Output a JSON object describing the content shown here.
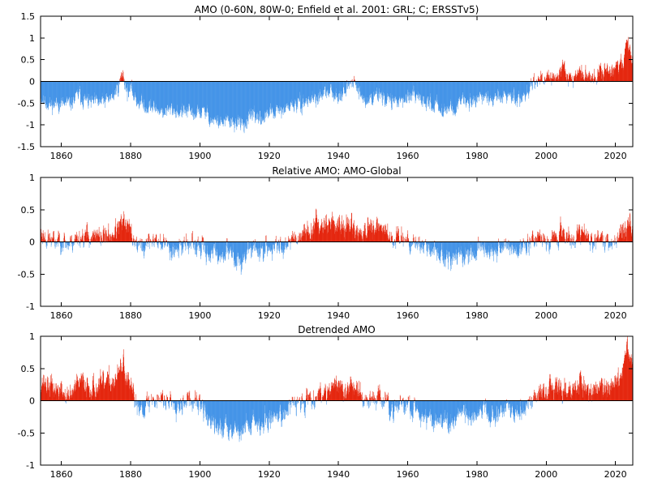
{
  "chart_data": [
    {
      "type": "bar",
      "title": "AMO (0-60N, 80W-0;  Enfield et al. 2001: GRL; C; ERSSTv5)",
      "xlabel": "",
      "ylabel": "",
      "xlim": [
        1854,
        2025
      ],
      "ylim": [
        -1.5,
        1.5
      ],
      "yticks": [
        "-1.5",
        "-1",
        "-0.5",
        "0",
        "0.5",
        "1",
        "1.5"
      ],
      "ytick_values": [
        -1.5,
        -1,
        -0.5,
        0,
        0.5,
        1,
        1.5
      ],
      "xticks": [
        "1860",
        "1880",
        "1900",
        "1920",
        "1940",
        "1960",
        "1980",
        "2000",
        "2020"
      ],
      "xtick_values": [
        1860,
        1880,
        1900,
        1920,
        1940,
        1960,
        1980,
        2000,
        2020
      ],
      "positive_color": "#e31a00",
      "negative_color": "#3a8ee6",
      "grid": false,
      "anchors": [
        [
          1854.0,
          -0.35
        ],
        [
          1855.0,
          -0.45
        ],
        [
          1857.0,
          -0.55
        ],
        [
          1859.0,
          -0.5
        ],
        [
          1861.0,
          -0.55
        ],
        [
          1863.0,
          -0.5
        ],
        [
          1865.0,
          -0.3
        ],
        [
          1867.0,
          -0.45
        ],
        [
          1869.0,
          -0.5
        ],
        [
          1871.0,
          -0.5
        ],
        [
          1873.0,
          -0.45
        ],
        [
          1875.0,
          -0.35
        ],
        [
          1876.5,
          -0.1
        ],
        [
          1877.8,
          0.2
        ],
        [
          1879.0,
          -0.25
        ],
        [
          1880.0,
          -0.2
        ],
        [
          1882.0,
          -0.45
        ],
        [
          1884.0,
          -0.55
        ],
        [
          1886.0,
          -0.6
        ],
        [
          1888.0,
          -0.65
        ],
        [
          1890.0,
          -0.7
        ],
        [
          1892.0,
          -0.65
        ],
        [
          1894.0,
          -0.7
        ],
        [
          1896.0,
          -0.7
        ],
        [
          1898.0,
          -0.75
        ],
        [
          1900.0,
          -0.7
        ],
        [
          1902.0,
          -0.75
        ],
        [
          1904.0,
          -0.9
        ],
        [
          1906.0,
          -0.95
        ],
        [
          1908.0,
          -0.95
        ],
        [
          1910.0,
          -0.95
        ],
        [
          1912.0,
          -1.0
        ],
        [
          1914.0,
          -0.9
        ],
        [
          1916.0,
          -0.8
        ],
        [
          1918.0,
          -0.85
        ],
        [
          1920.0,
          -0.75
        ],
        [
          1922.0,
          -0.7
        ],
        [
          1924.0,
          -0.7
        ],
        [
          1926.0,
          -0.55
        ],
        [
          1928.0,
          -0.55
        ],
        [
          1930.0,
          -0.5
        ],
        [
          1932.0,
          -0.4
        ],
        [
          1934.0,
          -0.4
        ],
        [
          1936.0,
          -0.3
        ],
        [
          1938.0,
          -0.25
        ],
        [
          1940.0,
          -0.3
        ],
        [
          1942.0,
          -0.2
        ],
        [
          1944.0,
          -0.05
        ],
        [
          1945.0,
          0.05
        ],
        [
          1946.0,
          -0.25
        ],
        [
          1948.0,
          -0.5
        ],
        [
          1950.0,
          -0.35
        ],
        [
          1952.0,
          -0.3
        ],
        [
          1954.0,
          -0.4
        ],
        [
          1956.0,
          -0.5
        ],
        [
          1958.0,
          -0.4
        ],
        [
          1960.0,
          -0.35
        ],
        [
          1962.0,
          -0.4
        ],
        [
          1964.0,
          -0.45
        ],
        [
          1966.0,
          -0.5
        ],
        [
          1968.0,
          -0.55
        ],
        [
          1970.0,
          -0.6
        ],
        [
          1972.0,
          -0.65
        ],
        [
          1974.0,
          -0.55
        ],
        [
          1976.0,
          -0.5
        ],
        [
          1978.0,
          -0.45
        ],
        [
          1980.0,
          -0.35
        ],
        [
          1982.0,
          -0.35
        ],
        [
          1984.0,
          -0.45
        ],
        [
          1986.0,
          -0.4
        ],
        [
          1988.0,
          -0.3
        ],
        [
          1990.0,
          -0.3
        ],
        [
          1992.0,
          -0.35
        ],
        [
          1994.0,
          -0.35
        ],
        [
          1995.5,
          -0.05
        ],
        [
          1997.0,
          0.0
        ],
        [
          1998.0,
          0.15
        ],
        [
          2000.0,
          -0.05
        ],
        [
          2002.0,
          0.1
        ],
        [
          2004.0,
          0.2
        ],
        [
          2006.0,
          0.15
        ],
        [
          2008.0,
          0.1
        ],
        [
          2010.0,
          0.2
        ],
        [
          2012.0,
          0.15
        ],
        [
          2014.0,
          0.1
        ],
        [
          2016.0,
          0.25
        ],
        [
          2018.0,
          0.2
        ],
        [
          2020.0,
          0.3
        ],
        [
          2022.0,
          0.4
        ],
        [
          2023.3,
          0.85
        ],
        [
          2024.0,
          0.8
        ],
        [
          2025.0,
          0.5
        ]
      ],
      "noise": 0.18,
      "seed": 11
    },
    {
      "type": "bar",
      "title": "Relative AMO: AMO-Global",
      "xlabel": "",
      "ylabel": "",
      "xlim": [
        1854,
        2025
      ],
      "ylim": [
        -1,
        1
      ],
      "yticks": [
        "-1",
        "-0.5",
        "0",
        "0.5",
        "1"
      ],
      "ytick_values": [
        -1,
        -0.5,
        0,
        0.5,
        1
      ],
      "xticks": [
        "1860",
        "1880",
        "1900",
        "1920",
        "1940",
        "1960",
        "1980",
        "2000",
        "2020"
      ],
      "xtick_values": [
        1860,
        1880,
        1900,
        1920,
        1940,
        1960,
        1980,
        2000,
        2020
      ],
      "positive_color": "#e31a00",
      "negative_color": "#3a8ee6",
      "grid": false,
      "anchors": [
        [
          1854.0,
          0.15
        ],
        [
          1856.0,
          0.05
        ],
        [
          1858.0,
          0.0
        ],
        [
          1860.0,
          0.05
        ],
        [
          1862.0,
          -0.05
        ],
        [
          1864.0,
          0.05
        ],
        [
          1866.0,
          0.1
        ],
        [
          1868.0,
          0.1
        ],
        [
          1870.0,
          0.05
        ],
        [
          1872.0,
          0.1
        ],
        [
          1874.0,
          0.1
        ],
        [
          1876.0,
          0.2
        ],
        [
          1878.0,
          0.3
        ],
        [
          1880.0,
          0.15
        ],
        [
          1882.0,
          -0.05
        ],
        [
          1884.0,
          -0.1
        ],
        [
          1886.0,
          0.05
        ],
        [
          1888.0,
          0.0
        ],
        [
          1890.0,
          -0.05
        ],
        [
          1892.0,
          -0.1
        ],
        [
          1894.0,
          -0.1
        ],
        [
          1896.0,
          0.0
        ],
        [
          1898.0,
          -0.1
        ],
        [
          1900.0,
          -0.1
        ],
        [
          1902.0,
          -0.15
        ],
        [
          1904.0,
          -0.2
        ],
        [
          1906.0,
          -0.2
        ],
        [
          1908.0,
          -0.15
        ],
        [
          1910.0,
          -0.25
        ],
        [
          1912.0,
          -0.3
        ],
        [
          1914.0,
          -0.15
        ],
        [
          1916.0,
          -0.1
        ],
        [
          1918.0,
          -0.15
        ],
        [
          1920.0,
          -0.1
        ],
        [
          1922.0,
          -0.1
        ],
        [
          1924.0,
          -0.05
        ],
        [
          1926.0,
          0.05
        ],
        [
          1928.0,
          0.1
        ],
        [
          1930.0,
          0.15
        ],
        [
          1932.0,
          0.2
        ],
        [
          1934.0,
          0.3
        ],
        [
          1936.0,
          0.3
        ],
        [
          1938.0,
          0.3
        ],
        [
          1940.0,
          0.25
        ],
        [
          1942.0,
          0.25
        ],
        [
          1944.0,
          0.25
        ],
        [
          1946.0,
          0.15
        ],
        [
          1948.0,
          0.15
        ],
        [
          1950.0,
          0.2
        ],
        [
          1952.0,
          0.2
        ],
        [
          1954.0,
          0.15
        ],
        [
          1956.0,
          0.05
        ],
        [
          1958.0,
          0.1
        ],
        [
          1960.0,
          0.05
        ],
        [
          1962.0,
          0.0
        ],
        [
          1964.0,
          -0.05
        ],
        [
          1966.0,
          -0.1
        ],
        [
          1968.0,
          -0.15
        ],
        [
          1970.0,
          -0.2
        ],
        [
          1972.0,
          -0.3
        ],
        [
          1974.0,
          -0.25
        ],
        [
          1976.0,
          -0.2
        ],
        [
          1978.0,
          -0.2
        ],
        [
          1980.0,
          -0.15
        ],
        [
          1982.0,
          -0.1
        ],
        [
          1984.0,
          -0.15
        ],
        [
          1986.0,
          -0.1
        ],
        [
          1988.0,
          -0.05
        ],
        [
          1990.0,
          -0.1
        ],
        [
          1992.0,
          -0.15
        ],
        [
          1994.0,
          -0.1
        ],
        [
          1996.0,
          0.05
        ],
        [
          1998.0,
          0.1
        ],
        [
          2000.0,
          0.05
        ],
        [
          2002.0,
          0.1
        ],
        [
          2004.0,
          0.15
        ],
        [
          2006.0,
          0.1
        ],
        [
          2008.0,
          0.05
        ],
        [
          2010.0,
          0.15
        ],
        [
          2012.0,
          0.1
        ],
        [
          2014.0,
          0.0
        ],
        [
          2016.0,
          0.05
        ],
        [
          2018.0,
          0.0
        ],
        [
          2020.0,
          0.05
        ],
        [
          2022.0,
          0.15
        ],
        [
          2024.0,
          0.35
        ],
        [
          2025.0,
          0.25
        ]
      ],
      "noise": 0.16,
      "seed": 23
    },
    {
      "type": "bar",
      "title": "Detrended AMO",
      "xlabel": "",
      "ylabel": "",
      "xlim": [
        1854,
        2025
      ],
      "ylim": [
        -1,
        1
      ],
      "yticks": [
        "-1",
        "-0.5",
        "0",
        "0.5",
        "1"
      ],
      "ytick_values": [
        -1,
        -0.5,
        0,
        0.5,
        1
      ],
      "xticks": [
        "1860",
        "1880",
        "1900",
        "1920",
        "1940",
        "1960",
        "1980",
        "2000",
        "2020"
      ],
      "xtick_values": [
        1860,
        1880,
        1900,
        1920,
        1940,
        1960,
        1980,
        2000,
        2020
      ],
      "positive_color": "#e31a00",
      "negative_color": "#3a8ee6",
      "grid": false,
      "anchors": [
        [
          1854.0,
          0.35
        ],
        [
          1856.0,
          0.25
        ],
        [
          1858.0,
          0.2
        ],
        [
          1860.0,
          0.15
        ],
        [
          1862.0,
          0.05
        ],
        [
          1864.0,
          0.2
        ],
        [
          1866.0,
          0.3
        ],
        [
          1868.0,
          0.25
        ],
        [
          1870.0,
          0.2
        ],
        [
          1872.0,
          0.25
        ],
        [
          1874.0,
          0.3
        ],
        [
          1876.0,
          0.35
        ],
        [
          1878.0,
          0.6
        ],
        [
          1879.0,
          0.3
        ],
        [
          1880.0,
          0.15
        ],
        [
          1882.0,
          -0.05
        ],
        [
          1884.0,
          -0.1
        ],
        [
          1886.0,
          0.0
        ],
        [
          1888.0,
          0.05
        ],
        [
          1890.0,
          0.0
        ],
        [
          1892.0,
          0.0
        ],
        [
          1894.0,
          -0.05
        ],
        [
          1896.0,
          0.05
        ],
        [
          1898.0,
          -0.05
        ],
        [
          1900.0,
          -0.05
        ],
        [
          1902.0,
          -0.25
        ],
        [
          1904.0,
          -0.4
        ],
        [
          1906.0,
          -0.45
        ],
        [
          1908.0,
          -0.4
        ],
        [
          1910.0,
          -0.4
        ],
        [
          1912.0,
          -0.5
        ],
        [
          1914.0,
          -0.35
        ],
        [
          1916.0,
          -0.3
        ],
        [
          1918.0,
          -0.4
        ],
        [
          1920.0,
          -0.3
        ],
        [
          1922.0,
          -0.2
        ],
        [
          1924.0,
          -0.2
        ],
        [
          1926.0,
          -0.1
        ],
        [
          1928.0,
          -0.05
        ],
        [
          1930.0,
          0.0
        ],
        [
          1932.0,
          0.05
        ],
        [
          1934.0,
          0.1
        ],
        [
          1936.0,
          0.15
        ],
        [
          1938.0,
          0.25
        ],
        [
          1940.0,
          0.2
        ],
        [
          1942.0,
          0.2
        ],
        [
          1944.0,
          0.25
        ],
        [
          1946.0,
          0.15
        ],
        [
          1948.0,
          -0.05
        ],
        [
          1950.0,
          0.05
        ],
        [
          1952.0,
          0.05
        ],
        [
          1954.0,
          -0.05
        ],
        [
          1956.0,
          -0.15
        ],
        [
          1958.0,
          -0.1
        ],
        [
          1960.0,
          -0.05
        ],
        [
          1962.0,
          -0.15
        ],
        [
          1964.0,
          -0.2
        ],
        [
          1966.0,
          -0.25
        ],
        [
          1968.0,
          -0.3
        ],
        [
          1970.0,
          -0.35
        ],
        [
          1972.0,
          -0.35
        ],
        [
          1974.0,
          -0.3
        ],
        [
          1976.0,
          -0.25
        ],
        [
          1978.0,
          -0.25
        ],
        [
          1980.0,
          -0.2
        ],
        [
          1982.0,
          -0.15
        ],
        [
          1984.0,
          -0.25
        ],
        [
          1986.0,
          -0.2
        ],
        [
          1988.0,
          -0.15
        ],
        [
          1990.0,
          -0.2
        ],
        [
          1992.0,
          -0.2
        ],
        [
          1994.0,
          -0.15
        ],
        [
          1996.0,
          0.05
        ],
        [
          1998.0,
          0.15
        ],
        [
          2000.0,
          0.1
        ],
        [
          2002.0,
          0.2
        ],
        [
          2004.0,
          0.25
        ],
        [
          2006.0,
          0.2
        ],
        [
          2008.0,
          0.15
        ],
        [
          2010.0,
          0.25
        ],
        [
          2012.0,
          0.2
        ],
        [
          2014.0,
          0.15
        ],
        [
          2016.0,
          0.25
        ],
        [
          2018.0,
          0.2
        ],
        [
          2020.0,
          0.3
        ],
        [
          2022.0,
          0.45
        ],
        [
          2023.3,
          0.85
        ],
        [
          2024.0,
          0.8
        ],
        [
          2025.0,
          0.55
        ]
      ],
      "noise": 0.17,
      "seed": 37
    }
  ]
}
